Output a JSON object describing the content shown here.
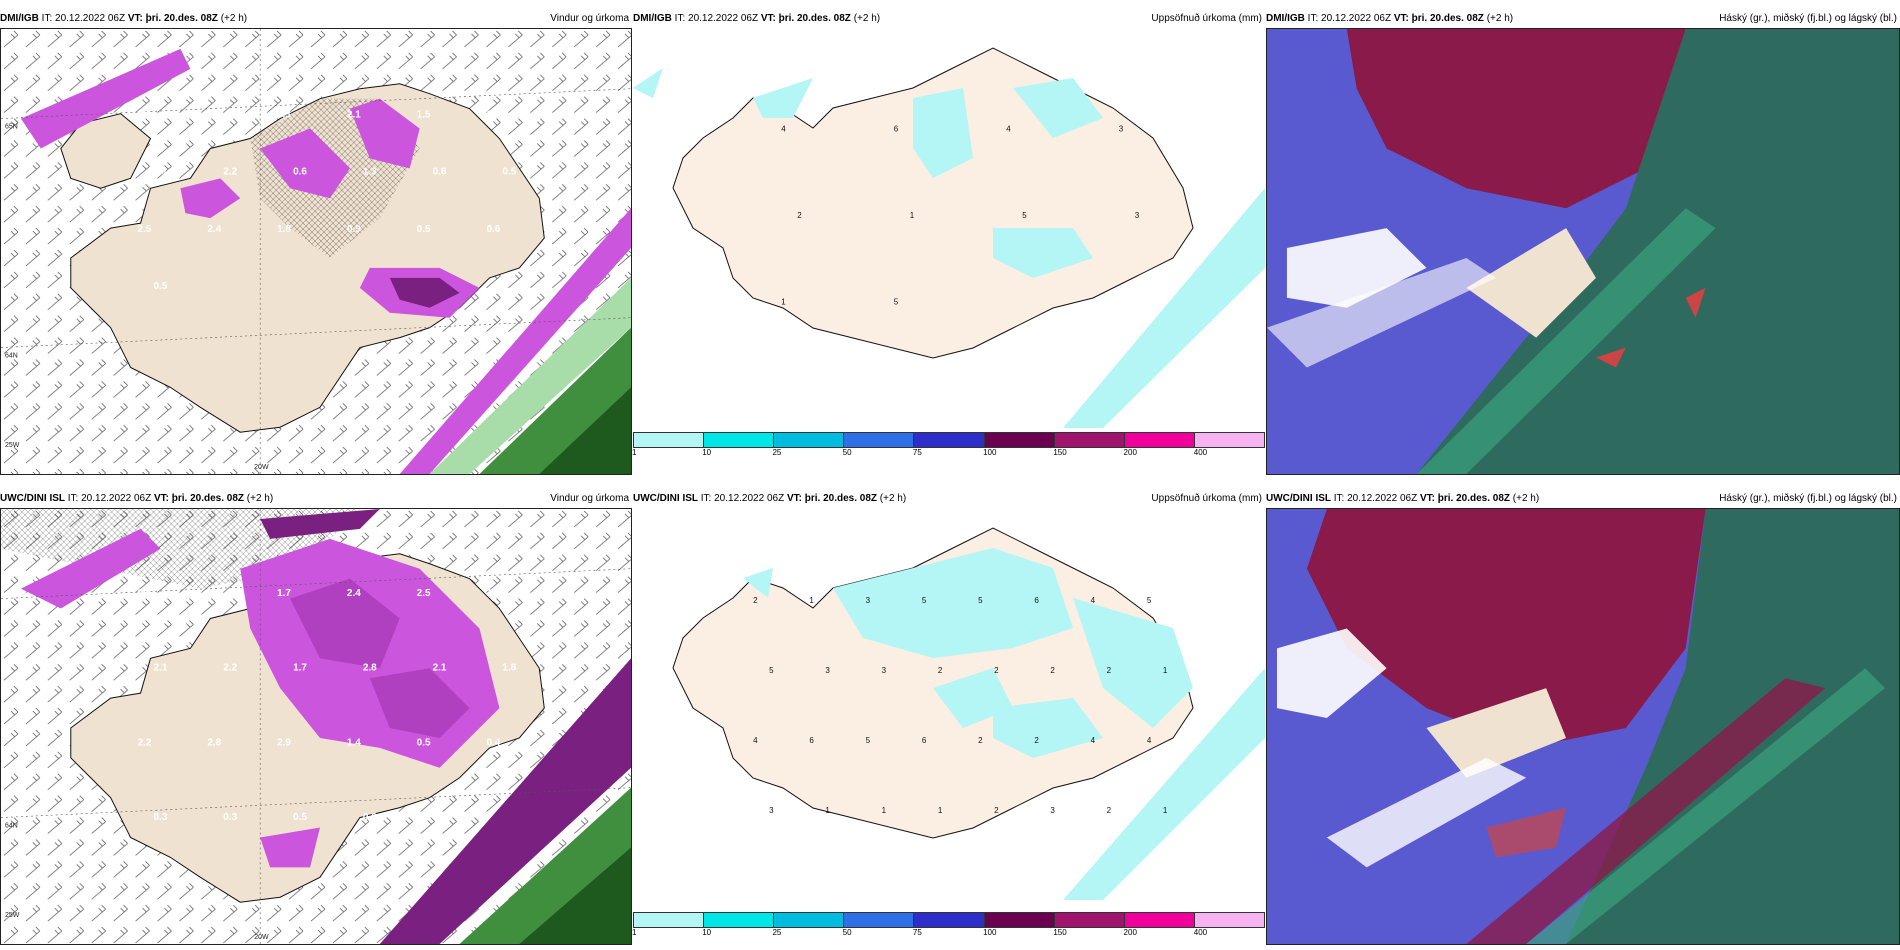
{
  "top": {
    "wind": {
      "source": "DMI/IGB",
      "it": "IT: 20.12.2022 06Z",
      "vt_label": "VT:",
      "vt": "þri. 20.des. 08Z",
      "lead": "(+2 h)",
      "title": "Vindur og úrkoma"
    },
    "accum": {
      "source": "DMI/IGB",
      "it": "IT: 20.12.2022 06Z",
      "vt_label": "VT:",
      "vt": "þri. 20.des. 08Z",
      "lead": "(+2 h)",
      "title": "Uppsöfnuð úrkoma (mm)"
    },
    "cloud": {
      "source": "DMI/IGB",
      "it": "IT: 20.12.2022 06Z",
      "vt_label": "VT:",
      "vt": "þri. 20.des. 08Z",
      "lead": "(+2 h)",
      "title": "Háský (gr.), miðský (fj.bl.) og lágský (bl.)"
    }
  },
  "bottom": {
    "wind": {
      "source": "UWC/DINI ISL",
      "it": "IT: 20.12.2022 06Z",
      "vt_label": "VT:",
      "vt": "þri. 20.des. 08Z",
      "lead": "(+2 h)",
      "title": "Vindur og úrkoma"
    },
    "accum": {
      "source": "UWC/DINI ISL",
      "it": "IT: 20.12.2022 06Z",
      "vt_label": "VT:",
      "vt": "þri. 20.des. 08Z",
      "lead": "(+2 h)",
      "title": "Uppsöfnuð úrkoma (mm)"
    },
    "cloud": {
      "source": "UWC/DINI ISL",
      "it": "IT: 20.12.2022 06Z",
      "vt_label": "VT:",
      "vt": "þri. 20.des. 08Z",
      "lead": "(+2 h)",
      "title": "Háský (gr.), miðský (fj.bl.) og lágský (bl.)"
    }
  },
  "grid_labels": {
    "lat65": "65N",
    "lat64": "64N",
    "lon20": "20W",
    "lon25": "25W"
  },
  "colorbar": {
    "ticks": [
      "1",
      "10",
      "25",
      "50",
      "75",
      "100",
      "150",
      "200",
      "400"
    ],
    "colors": [
      "#b4f5f5",
      "#00e6e6",
      "#00bde0",
      "#2f6fe6",
      "#2d2dc8",
      "#6a0050",
      "#a0146e",
      "#f0009a",
      "#f5b4f0"
    ]
  },
  "top_wind_values": [
    "2.1",
    "0.5",
    "3.3",
    "2.1",
    "1.5",
    "1.7",
    "1.1",
    "2.2",
    "0.6",
    "1.3",
    "0.8",
    "0.5",
    "2.5",
    "2.4",
    "1.8",
    "0.9",
    "0.5",
    "0.6",
    "0.5"
  ],
  "bottom_wind_values": [
    "0.6",
    "0.7",
    "1.7",
    "2.4",
    "2.5",
    "1.8",
    "2.1",
    "2.2",
    "1.7",
    "2.8",
    "2.1",
    "1.8",
    "2.2",
    "2.8",
    "2.9",
    "1.4",
    "0.5",
    "0.4",
    "0.3",
    "0.3",
    "0.5",
    "0.6"
  ],
  "top_accum_values": [
    "4",
    "6",
    "4",
    "3",
    "2",
    "1",
    "5",
    "3",
    "1",
    "5"
  ],
  "bottom_accum_values": [
    "2",
    "1",
    "3",
    "5",
    "5",
    "6",
    "4",
    "5",
    "5",
    "3",
    "3",
    "2",
    "2",
    "2",
    "2",
    "1",
    "4",
    "6",
    "5",
    "6",
    "2",
    "2",
    "4",
    "4",
    "3",
    "1",
    "1",
    "1",
    "2",
    "3",
    "2",
    "1"
  ],
  "colors": {
    "land": "#f5e6d6",
    "land_edge": "#111",
    "precip_pink": "#cc55dd",
    "precip_dark": "#7a2080",
    "green": "#3f8f3f",
    "cloud_high": "#2e6b5e",
    "cloud_mid": "#8a1a4a",
    "cloud_low": "#5a5ad0"
  }
}
